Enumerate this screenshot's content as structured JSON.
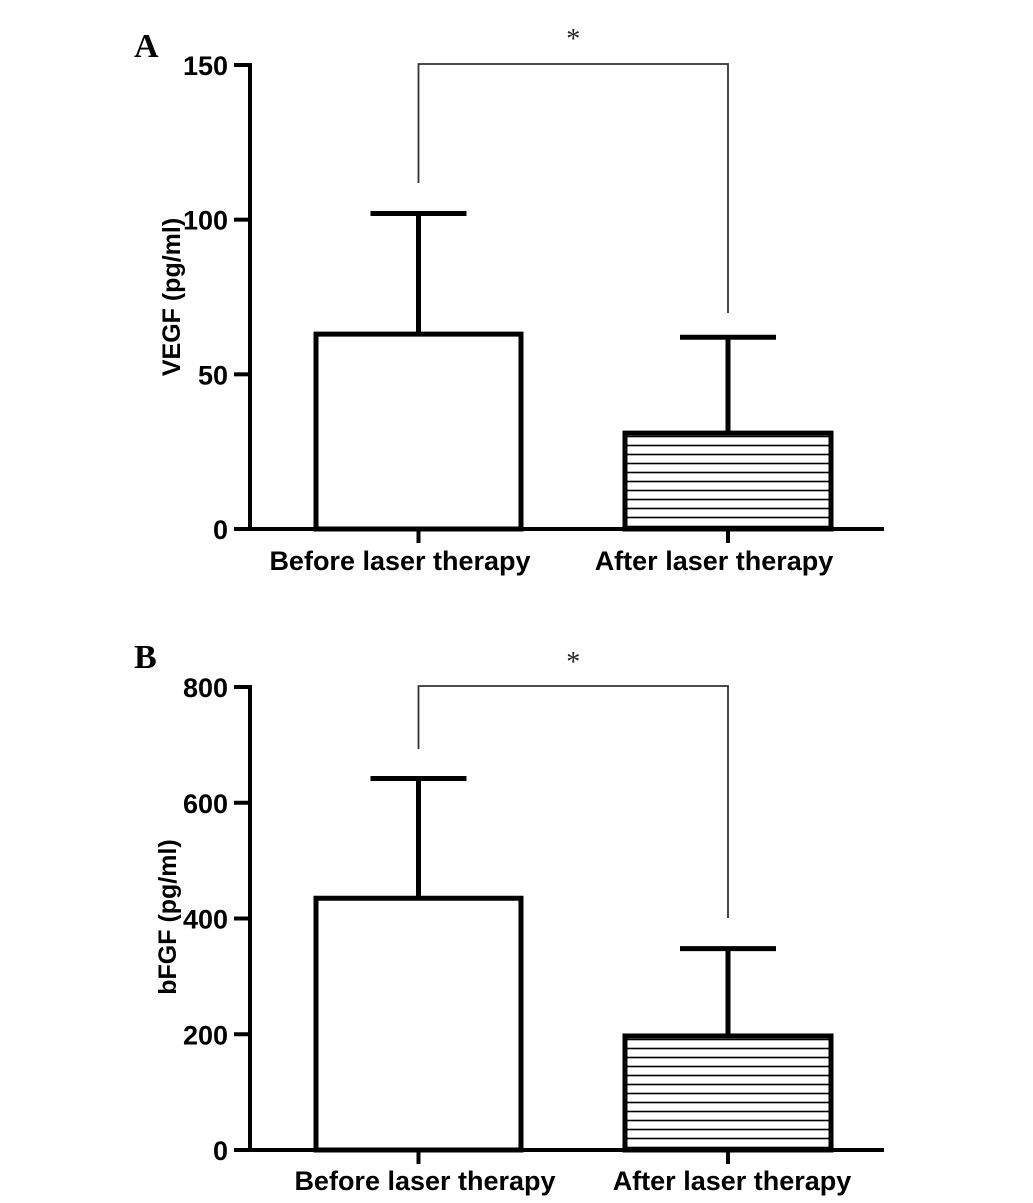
{
  "chart_data": [
    {
      "panel": "A",
      "type": "bar",
      "categories": [
        "Before laser therapy",
        "After laser therapy"
      ],
      "values": [
        63,
        31
      ],
      "error_upper": [
        102,
        62
      ],
      "ylabel": "VEGF (pg/ml)",
      "ylim": [
        0,
        150
      ],
      "yticks": [
        "0",
        "50",
        "100",
        "150"
      ],
      "patterns": [
        "none",
        "horizontal-lines"
      ],
      "significance": "*",
      "grid": false
    },
    {
      "panel": "B",
      "type": "bar",
      "categories": [
        "Before laser therapy",
        "After laser therapy"
      ],
      "values": [
        435,
        197
      ],
      "error_upper": [
        642,
        348
      ],
      "ylabel": "bFGF (pg/ml)",
      "ylim": [
        0,
        800
      ],
      "yticks": [
        "0",
        "200",
        "400",
        "600",
        "800"
      ],
      "patterns": [
        "none",
        "horizontal-lines"
      ],
      "significance": "*",
      "grid": false
    }
  ]
}
